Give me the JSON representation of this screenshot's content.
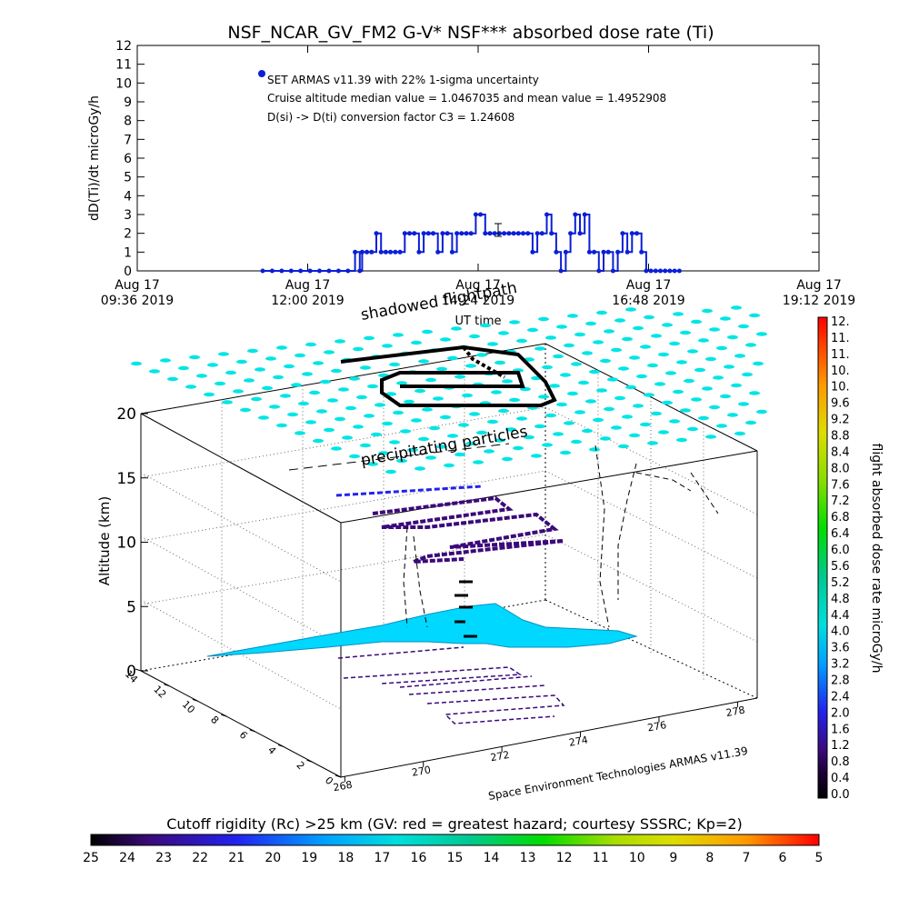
{
  "title": "NSF_NCAR_GV_FM2 G-V* NSF*** absorbed dose rate (Ti)",
  "chart_data": [
    {
      "type": "line",
      "ylabel": "dD(Ti)/dt microGy/h",
      "xlabel": "UT time",
      "ylim": [
        0,
        12
      ],
      "yticks": [
        "0",
        "1",
        "2",
        "3",
        "4",
        "5",
        "6",
        "7",
        "8",
        "9",
        "10",
        "11",
        "12"
      ],
      "xticks": [
        {
          "line1": "Aug 17",
          "line2": "09:36 2019"
        },
        {
          "line1": "Aug 17",
          "line2": "12:00 2019"
        },
        {
          "line1": "Aug 17",
          "line2": "14:24 2019"
        },
        {
          "line1": "Aug 17",
          "line2": "16:48 2019"
        },
        {
          "line1": "Aug 17",
          "line2": "19:12 2019"
        }
      ],
      "legend_text": "SET ARMAS v11.39 with 22% 1-sigma uncertainty",
      "annotations": [
        "Cruise altitude median value = 1.0467035 and mean value = 1.4952908",
        "D(si) -> D(ti) conversion factor C3 = 1.24608"
      ],
      "series": [
        {
          "color": "#0a1fd6",
          "x_minutes": [
            36,
            44,
            52,
            60,
            68,
            76,
            84,
            92,
            100,
            108,
            114,
            118,
            120,
            124,
            128,
            132,
            136,
            140,
            144,
            148,
            152,
            156,
            160,
            164,
            168,
            172,
            176,
            180,
            184,
            188,
            192,
            196,
            200,
            204,
            208,
            212,
            216,
            220,
            224,
            228,
            232,
            236,
            240,
            244,
            248,
            252,
            256,
            260,
            264,
            268,
            272,
            276,
            280,
            284,
            288,
            292,
            296,
            300,
            304,
            308,
            312,
            316,
            320,
            324,
            328,
            332,
            336,
            340,
            344,
            348,
            352,
            356,
            360,
            364,
            368,
            372,
            376,
            380,
            384,
            388
          ],
          "values": [
            0,
            0,
            0,
            0,
            0,
            0,
            0,
            0,
            0,
            0,
            1,
            0,
            1,
            1,
            1,
            2,
            1,
            1,
            1,
            1,
            1,
            2,
            2,
            2,
            1,
            2,
            2,
            2,
            1,
            2,
            2,
            1,
            2,
            2,
            2,
            2,
            3,
            3,
            2,
            2,
            2,
            2,
            2,
            2,
            2,
            2,
            2,
            2,
            1,
            2,
            2,
            3,
            2,
            1,
            0,
            1,
            2,
            3,
            2,
            3,
            1,
            1,
            0,
            1,
            1,
            0,
            1,
            2,
            1,
            2,
            2,
            1,
            0,
            0,
            0,
            0,
            0,
            0,
            0,
            0
          ]
        }
      ]
    },
    {
      "type": "scatter",
      "annotations": [
        "shadowed flightpath",
        "precipitating particles"
      ],
      "zlabel": "Altitude (km)",
      "zticks": [
        "0",
        "5",
        "10",
        "15",
        "20"
      ],
      "yticks": [
        "14",
        "12",
        "10",
        "8",
        "6",
        "4",
        "2",
        "0"
      ],
      "xticks": [
        "268",
        "270",
        "272",
        "274",
        "276",
        "278"
      ],
      "footer": "Space Environment Technologies ARMAS v11.39",
      "colorbar_label": "flight absorbed dose rate microGy/h",
      "colorbar_ticks": [
        "12.",
        "11.",
        "11.",
        "10.",
        "10.",
        "9.6",
        "9.2",
        "8.8",
        "8.4",
        "8.0",
        "7.6",
        "7.2",
        "6.8",
        "6.4",
        "6.0",
        "5.6",
        "5.2",
        "4.8",
        "4.4",
        "4.0",
        "3.6",
        "3.2",
        "2.8",
        "2.4",
        "2.0",
        "1.6",
        "1.2",
        "0.8",
        "0.4",
        "0.0"
      ],
      "colors": {
        "shadow": "#00e5e5",
        "land": "#00c8ff",
        "track_dark": "#2a004a"
      }
    },
    {
      "type": "heatmap",
      "title": "Cutoff rigidity (Rc) >25 km (GV: red = greatest hazard; courtesy SSSRC; Kp=2)",
      "ticks": [
        "25",
        "24",
        "23",
        "22",
        "21",
        "20",
        "19",
        "18",
        "17",
        "16",
        "15",
        "14",
        "13",
        "12",
        "11",
        "10",
        "9",
        "8",
        "7",
        "6",
        "5"
      ]
    }
  ]
}
